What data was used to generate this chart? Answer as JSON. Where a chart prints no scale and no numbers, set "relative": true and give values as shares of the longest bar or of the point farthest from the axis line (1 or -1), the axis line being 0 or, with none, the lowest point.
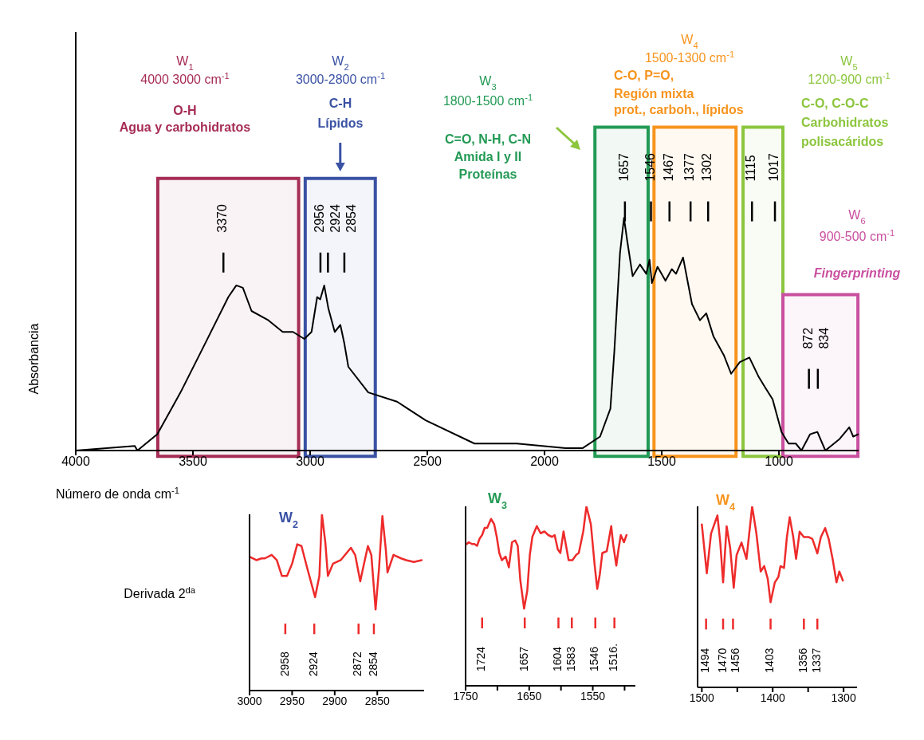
{
  "chart_data": [
    {
      "type": "line",
      "xlabel": "Número de onda cm$^{-1}$",
      "ylabel": "Absorbancia",
      "relative": true,
      "color": "#000000",
      "x": [
        4000,
        3748,
        3737,
        3652,
        3553,
        3458,
        3349,
        3315,
        3287,
        3250,
        3178,
        3117,
        3073,
        3025,
        2994,
        2970,
        2957,
        2940,
        2922,
        2895,
        2871,
        2854,
        2837,
        2752,
        2629,
        2507,
        2299,
        2118,
        1910,
        1838,
        1763,
        1719,
        1702,
        1678,
        1661,
        1647,
        1624,
        1593,
        1566,
        1552,
        1542,
        1518,
        1484,
        1457,
        1439,
        1409,
        1371,
        1337,
        1310,
        1279,
        1235,
        1204,
        1167,
        1126,
        1088,
        1058,
        1027,
        989,
        959,
        928,
        904,
        867,
        836,
        802,
        741,
        700,
        683,
        662
      ],
      "values": [
        0,
        0.02,
        0,
        0.07,
        0.25,
        0.44,
        0.66,
        0.71,
        0.7,
        0.6,
        0.56,
        0.51,
        0.51,
        0.48,
        0.51,
        0.66,
        0.65,
        0.71,
        0.61,
        0.51,
        0.54,
        0.46,
        0.36,
        0.25,
        0.21,
        0.13,
        0.03,
        0.03,
        0.01,
        0.01,
        0.06,
        0.18,
        0.43,
        0.85,
        1,
        0.9,
        0.75,
        0.8,
        0.76,
        0.82,
        0.72,
        0.79,
        0.73,
        0.78,
        0.76,
        0.83,
        0.63,
        0.56,
        0.59,
        0.49,
        0.41,
        0.33,
        0.38,
        0.4,
        0.32,
        0.27,
        0.22,
        0.08,
        0.03,
        0.03,
        0,
        0.07,
        0.08,
        0,
        0.05,
        0.1,
        0.06,
        0.07
      ],
      "xlim": [
        4000,
        660
      ],
      "xticks": [
        4000,
        3500,
        3000,
        2500,
        2000,
        1500,
        1000
      ],
      "tick_labels": "x",
      "bands": [
        {
          "axis": "x",
          "from": 3650,
          "to": 3049,
          "label": "W$_{1}$\n4000 3000 cm$^{-1}$",
          "color": "#a62d55"
        },
        {
          "axis": "x",
          "from": 3021,
          "to": 2722,
          "label": "W$_{2}$\n3000-2800 cm$^{-1}$",
          "color": "#3a52a4"
        },
        {
          "axis": "x",
          "from": 1785,
          "to": 1558,
          "label": "W$_{3}$\n1800-1500 cm$^{-1}$",
          "color": "#239a55"
        },
        {
          "axis": "x",
          "from": 1533,
          "to": 1183,
          "label": "W$_{4}$\n1500-1300 cm$^{-1}$",
          "color": "#f7941d"
        },
        {
          "axis": "x",
          "from": 1153,
          "to": 983,
          "label": "W$_{5}$\n1200-900 cm$^{-1}$",
          "color": "#8cc63e"
        },
        {
          "axis": "x",
          "from": 983,
          "to": 663,
          "label": "W$_{6}$\n900-500 cm$^{-1}$",
          "color": "#c9509f"
        }
      ],
      "annotations": [
        "O-H\nAgua y carbohidratos",
        "C-H\nLípidos",
        "C=O, N-H, C-N\nAmida I y II\nProteínas",
        "C-O, P=O,\nRegión mixta\nprot., carboh., lípidos",
        "C-O, C-O-C\nCarbohidratos\npolisacáridos",
        "Fingerprinting",
        "3370",
        "2956",
        "2924",
        "2854",
        "1657",
        "1546",
        "1467",
        "1377",
        "1302",
        "1115",
        "1017",
        "872",
        "834"
      ]
    },
    {
      "type": "line",
      "title": "W$_{2}$",
      "ylabel": "Derivada 2$^{da}$",
      "relative": true,
      "color": "#ee2b2b",
      "x": [
        3000,
        2992,
        2986,
        2982,
        2974,
        2968,
        2962,
        2956,
        2950,
        2944,
        2939,
        2932,
        2923,
        2918,
        2915,
        2911,
        2908,
        2902,
        2893,
        2881,
        2876,
        2870,
        2866,
        2861,
        2857,
        2852,
        2848,
        2844,
        2840,
        2838,
        2831,
        2822,
        2816,
        2807,
        2798
      ],
      "values": [
        0.76,
        0.74,
        0.75,
        0.75,
        0.77,
        0.74,
        0.65,
        0.65,
        0.72,
        0.83,
        0.82,
        0.69,
        0.53,
        0.65,
        1,
        0.84,
        0.65,
        0.72,
        0.74,
        0.81,
        0.77,
        0.62,
        0.71,
        0.82,
        0.77,
        0.46,
        0.69,
        0.99,
        0.8,
        0.67,
        0.77,
        0.75,
        0.74,
        0.73,
        0.74
      ],
      "xlim": [
        3000,
        2795
      ],
      "xticks": [
        3000,
        2950,
        2900,
        2850
      ],
      "tick_labels": "x",
      "annotations": [
        "2958",
        "2924",
        "2872",
        "2854"
      ]
    },
    {
      "type": "line",
      "title": "W$_{3}$",
      "relative": true,
      "color": "#ee2b2b",
      "x": [
        1748,
        1745,
        1740,
        1736,
        1732,
        1728,
        1724,
        1720,
        1716,
        1710,
        1705,
        1701,
        1697,
        1693,
        1687,
        1682,
        1677,
        1672,
        1668,
        1664,
        1658,
        1653,
        1649,
        1645,
        1638,
        1632,
        1626,
        1620,
        1614,
        1610,
        1605,
        1601,
        1596,
        1593,
        1588,
        1582,
        1576,
        1572,
        1565,
        1560,
        1553,
        1547,
        1543,
        1539,
        1535,
        1528,
        1521,
        1518,
        1513,
        1510,
        1506,
        1501,
        1497
      ],
      "values": [
        0.79,
        0.8,
        0.79,
        0.79,
        0.78,
        0.82,
        0.84,
        0.88,
        0.88,
        0.93,
        0.9,
        0.83,
        0.74,
        0.7,
        0.72,
        0.66,
        0.8,
        0.81,
        0.78,
        0.59,
        0.43,
        0.53,
        0.73,
        0.83,
        0.89,
        0.85,
        0.86,
        0.84,
        0.83,
        0.84,
        0.76,
        0.74,
        0.86,
        0.8,
        0.7,
        0.7,
        0.73,
        0.74,
        0.86,
        1,
        0.9,
        0.67,
        0.54,
        0.62,
        0.74,
        0.75,
        0.89,
        0.79,
        0.67,
        0.75,
        0.84,
        0.8,
        0.84
      ],
      "xlim": [
        1750,
        1483
      ],
      "xticks": [
        1750,
        {
          "value": 1700,
          "label": null
        },
        1650,
        {
          "value": 1600,
          "label": null
        },
        1550,
        {
          "value": 1500,
          "label": null
        }
      ],
      "tick_labels": "x",
      "annotations": [
        "1724",
        "1657",
        "1604",
        "1583",
        "1546",
        "1516."
      ]
    },
    {
      "type": "line",
      "title": "W$_{4}$",
      "relative": true,
      "color": "#ee2b2b",
      "x": [
        1500,
        1493,
        1487,
        1478,
        1474,
        1470,
        1465,
        1460,
        1455,
        1451,
        1444,
        1437,
        1429,
        1423,
        1417,
        1412,
        1407,
        1403,
        1397,
        1392,
        1389,
        1384,
        1380,
        1376,
        1371,
        1367,
        1362,
        1356,
        1349,
        1344,
        1337,
        1332,
        1326,
        1321,
        1315,
        1310,
        1306,
        1301
      ],
      "values": [
        0.9,
        0.63,
        0.85,
        0.95,
        0.8,
        0.58,
        0.89,
        0.77,
        0.55,
        0.73,
        0.8,
        0.71,
        1,
        0.85,
        0.64,
        0.67,
        0.6,
        0.47,
        0.58,
        0.61,
        0.67,
        0.66,
        0.83,
        0.94,
        0.83,
        0.71,
        0.86,
        0.83,
        0.83,
        0.82,
        0.74,
        0.83,
        0.88,
        0.82,
        0.7,
        0.58,
        0.64,
        0.59
      ],
      "xlim": [
        1506,
        1281
      ],
      "xticks": [
        1500,
        {
          "value": 1450,
          "label": null
        },
        1400,
        {
          "value": 1350,
          "label": null
        },
        1300
      ],
      "tick_labels": "x",
      "annotations": [
        "1494",
        "1470",
        "1456",
        "1403",
        "1356",
        "1337"
      ]
    }
  ]
}
